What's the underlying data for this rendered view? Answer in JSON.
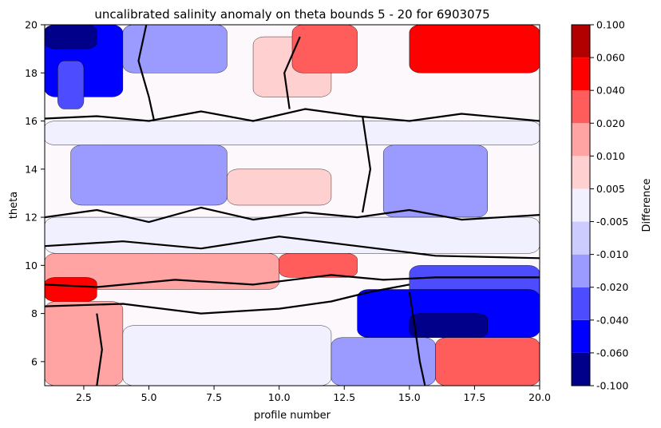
{
  "chart_data": {
    "type": "heatmap",
    "title": "uncalibrated salinity anomaly on theta bounds 5 - 20 for 6903075",
    "xlabel": "profile number",
    "ylabel": "theta",
    "xlim": [
      1,
      20
    ],
    "ylim": [
      5,
      20
    ],
    "xticks": [
      "2.5",
      "5.0",
      "7.5",
      "10.0",
      "12.5",
      "15.0",
      "17.5",
      "20.0"
    ],
    "xtick_values": [
      2.5,
      5.0,
      7.5,
      10.0,
      12.5,
      15.0,
      17.5,
      20.0
    ],
    "yticks": [
      "6",
      "8",
      "10",
      "12",
      "14",
      "16",
      "18",
      "20"
    ],
    "ytick_values": [
      6,
      8,
      10,
      12,
      14,
      16,
      18,
      20
    ],
    "colorbar": {
      "label": "Difference",
      "tick_labels": [
        "-0.100",
        "-0.060",
        "-0.040",
        "-0.020",
        "-0.010",
        "-0.005",
        "0.005",
        "0.010",
        "0.020",
        "0.040",
        "0.060",
        "0.100"
      ],
      "levels": [
        -0.1,
        -0.06,
        -0.04,
        -0.02,
        -0.01,
        -0.005,
        0.005,
        0.01,
        0.02,
        0.04,
        0.06,
        0.1
      ],
      "colors": [
        "#00008b",
        "#0000ff",
        "#4d4dff",
        "#9a9aff",
        "#ccccff",
        "#f0f0ff",
        "#ffd0d0",
        "#ffa3a3",
        "#ff5c5c",
        "#ff0000",
        "#b20000"
      ]
    },
    "zero_contour": "thick black line at difference = 0",
    "regions": [
      {
        "x": [
          1,
          4
        ],
        "y": [
          17,
          20
        ],
        "value": -0.06
      },
      {
        "x": [
          1,
          3
        ],
        "y": [
          19,
          20
        ],
        "value": -0.08
      },
      {
        "x": [
          1.5,
          2.5
        ],
        "y": [
          16.5,
          18.5
        ],
        "value": -0.04
      },
      {
        "x": [
          4,
          8
        ],
        "y": [
          18,
          20
        ],
        "value": -0.012
      },
      {
        "x": [
          9,
          12
        ],
        "y": [
          17,
          19.5
        ],
        "value": 0.008
      },
      {
        "x": [
          10.5,
          13
        ],
        "y": [
          18,
          20
        ],
        "value": 0.03
      },
      {
        "x": [
          15,
          20
        ],
        "y": [
          18,
          20
        ],
        "value": 0.04
      },
      {
        "x": [
          1,
          20
        ],
        "y": [
          15,
          16
        ],
        "value": 0.003
      },
      {
        "x": [
          2,
          8
        ],
        "y": [
          12.5,
          15
        ],
        "value": -0.012
      },
      {
        "x": [
          14,
          18
        ],
        "y": [
          12,
          15
        ],
        "value": -0.015
      },
      {
        "x": [
          8,
          12
        ],
        "y": [
          12.5,
          14
        ],
        "value": 0.008
      },
      {
        "x": [
          1,
          20
        ],
        "y": [
          10.5,
          12
        ],
        "value": 0.001
      },
      {
        "x": [
          1,
          10
        ],
        "y": [
          9,
          10.5
        ],
        "value": 0.012
      },
      {
        "x": [
          10,
          13
        ],
        "y": [
          9.5,
          10.5
        ],
        "value": 0.03
      },
      {
        "x": [
          1,
          3
        ],
        "y": [
          8.5,
          9.5
        ],
        "value": 0.05
      },
      {
        "x": [
          15,
          20
        ],
        "y": [
          8.5,
          10
        ],
        "value": -0.03
      },
      {
        "x": [
          13,
          20
        ],
        "y": [
          7,
          9
        ],
        "value": -0.05
      },
      {
        "x": [
          15,
          18
        ],
        "y": [
          7,
          8
        ],
        "value": -0.07
      },
      {
        "x": [
          1,
          4
        ],
        "y": [
          5,
          8.5
        ],
        "value": 0.012
      },
      {
        "x": [
          4,
          12
        ],
        "y": [
          5,
          7.5
        ],
        "value": 0.004
      },
      {
        "x": [
          12,
          16
        ],
        "y": [
          5,
          7
        ],
        "value": -0.015
      },
      {
        "x": [
          16,
          20
        ],
        "y": [
          5,
          7
        ],
        "value": 0.02
      }
    ]
  }
}
